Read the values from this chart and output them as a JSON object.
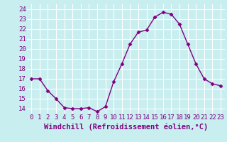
{
  "hours": [
    0,
    1,
    2,
    3,
    4,
    5,
    6,
    7,
    8,
    9,
    10,
    11,
    12,
    13,
    14,
    15,
    16,
    17,
    18,
    19,
    20,
    21,
    22,
    23
  ],
  "values": [
    17.0,
    17.0,
    15.8,
    15.0,
    14.1,
    14.0,
    14.0,
    14.1,
    13.7,
    14.2,
    16.7,
    18.5,
    20.5,
    21.7,
    21.9,
    23.2,
    23.7,
    23.5,
    22.5,
    20.5,
    18.5,
    17.0,
    16.5,
    16.3
  ],
  "line_color": "#800080",
  "marker": "D",
  "marker_size": 2.5,
  "bg_color": "#c8eef0",
  "grid_color": "#ffffff",
  "xlabel": "Windchill (Refroidissement éolien,°C)",
  "xlabel_color": "#800080",
  "ylabel_ticks": [
    14,
    15,
    16,
    17,
    18,
    19,
    20,
    21,
    22,
    23,
    24
  ],
  "xlim": [
    -0.5,
    23.5
  ],
  "ylim": [
    13.5,
    24.5
  ],
  "tick_fontsize": 6.5,
  "xlabel_fontsize": 7.5,
  "linewidth": 1.0
}
